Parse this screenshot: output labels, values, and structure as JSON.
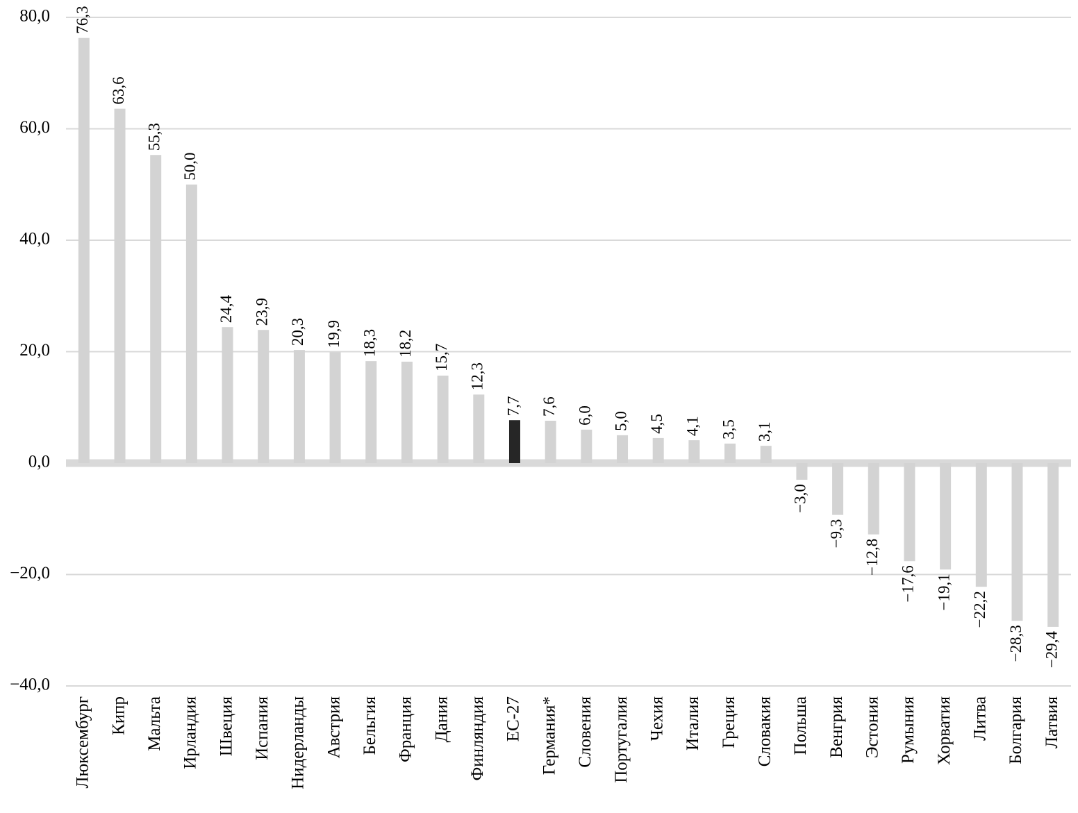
{
  "chart_data": {
    "type": "bar",
    "categories": [
      "Люксембург",
      "Кипр",
      "Мальта",
      "Ирландия",
      "Швеция",
      "Испания",
      "Нидерланды",
      "Австрия",
      "Бельгия",
      "Франция",
      "Дания",
      "Финляндия",
      "ЕС-27",
      "Германия*",
      "Словения",
      "Португалия",
      "Чехия",
      "Италия",
      "Греция",
      "Словакия",
      "Польша",
      "Венгрия",
      "Эстония",
      "Румыния",
      "Хорватия",
      "Литва",
      "Болгария",
      "Латвия"
    ],
    "values": [
      76.3,
      63.6,
      55.3,
      50.0,
      24.4,
      23.9,
      20.3,
      19.9,
      18.3,
      18.2,
      15.7,
      12.3,
      7.7,
      7.6,
      6.0,
      5.0,
      4.5,
      4.1,
      3.5,
      3.1,
      -3.0,
      -9.3,
      -12.8,
      -17.6,
      -19.1,
      -22.2,
      -28.3,
      -29.4
    ],
    "value_labels": [
      "76,3",
      "63,6",
      "55,3",
      "50,0",
      "24,4",
      "23,9",
      "20,3",
      "19,9",
      "18,3",
      "18,2",
      "15,7",
      "12,3",
      "7,7",
      "7,6",
      "6,0",
      "5,0",
      "4,5",
      "4,1",
      "3,5",
      "3,1",
      "−3,0",
      "−9,3",
      "−12,8",
      "−17,6",
      "−19,1",
      "−22,2",
      "−28,3",
      "−29,4"
    ],
    "colors": [
      "#d3d3d3",
      "#d3d3d3",
      "#d3d3d3",
      "#d3d3d3",
      "#d3d3d3",
      "#d3d3d3",
      "#d3d3d3",
      "#d3d3d3",
      "#d3d3d3",
      "#d3d3d3",
      "#d3d3d3",
      "#d3d3d3",
      "#262626",
      "#d3d3d3",
      "#d3d3d3",
      "#d3d3d3",
      "#d3d3d3",
      "#d3d3d3",
      "#d3d3d3",
      "#d3d3d3",
      "#d3d3d3",
      "#d3d3d3",
      "#d3d3d3",
      "#d3d3d3",
      "#d3d3d3",
      "#d3d3d3",
      "#d3d3d3",
      "#d3d3d3"
    ],
    "ylim": [
      -40,
      80
    ],
    "yticks": [
      {
        "value": -40,
        "label": "−40,0"
      },
      {
        "value": -20,
        "label": "−20,0"
      },
      {
        "value": 0,
        "label": "0,0"
      },
      {
        "value": 20,
        "label": "20,0"
      },
      {
        "value": 40,
        "label": "40,0"
      },
      {
        "value": 60,
        "label": "60,0"
      },
      {
        "value": 80,
        "label": "80,0"
      }
    ],
    "grid": true
  }
}
